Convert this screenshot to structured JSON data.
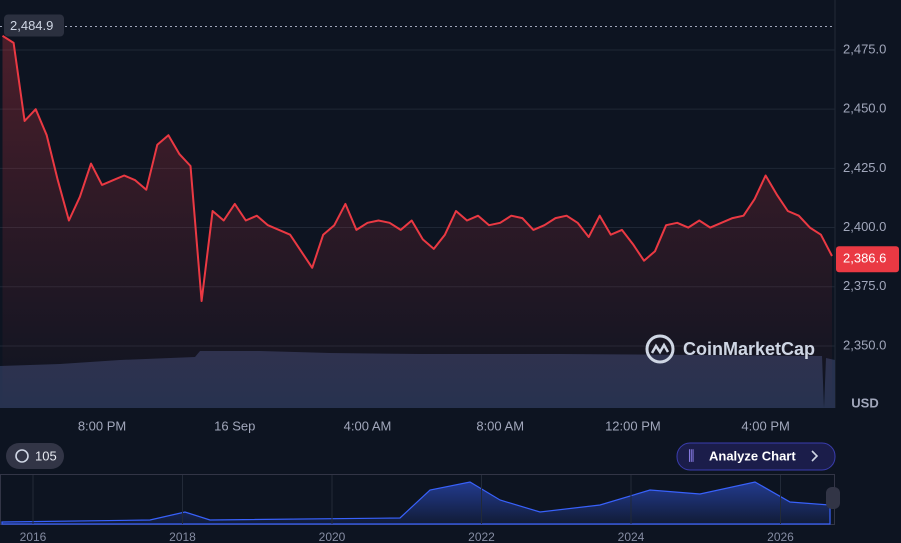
{
  "chart_data": {
    "type": "line",
    "categories": [
      null,
      null,
      null,
      null,
      null,
      null,
      null,
      null,
      null,
      "8:00 PM",
      null,
      null,
      null,
      null,
      null,
      null,
      null,
      null,
      null,
      null,
      null,
      "16 Sep",
      null,
      null,
      null,
      null,
      null,
      null,
      null,
      null,
      null,
      null,
      null,
      "4:00 AM",
      null,
      null,
      null,
      null,
      null,
      null,
      null,
      null,
      null,
      null,
      null,
      "8:00 AM",
      null,
      null,
      null,
      null,
      null,
      null,
      null,
      null,
      null,
      null,
      null,
      "12:00 PM",
      null,
      null,
      null,
      null,
      null,
      null,
      null,
      null,
      null,
      null,
      null,
      "4:00 PM",
      null,
      null,
      null,
      null,
      null,
      null
    ],
    "values": [
      2481,
      2478,
      2445,
      2450,
      2439,
      2420,
      2403,
      2413,
      2427,
      2418,
      2420,
      2422,
      2420,
      2416,
      2435,
      2439,
      2431,
      2426,
      2369,
      2407,
      2403,
      2410,
      2403,
      2405,
      2401,
      2399,
      2397,
      2390,
      2383,
      2397,
      2401,
      2410,
      2399,
      2402,
      2403,
      2402,
      2399,
      2403,
      2395,
      2391,
      2397,
      2407,
      2403,
      2405,
      2401,
      2402,
      2405,
      2404,
      2399,
      2401,
      2404,
      2405,
      2402,
      2396,
      2405,
      2397,
      2399,
      2393,
      2386,
      2390,
      2401,
      2402,
      2400,
      2403,
      2400,
      2402,
      2404,
      2405,
      2412,
      2422,
      2414,
      2407,
      2405,
      2400,
      2397,
      2388
    ],
    "color": "#ea3943",
    "ylim": [
      2323.8,
      2496.1
    ],
    "yticks": [
      {
        "value": 2350,
        "label": "2,350.0"
      },
      {
        "value": 2375,
        "label": "2,375.0"
      },
      {
        "value": 2400,
        "label": "2,400.0"
      },
      {
        "value": 2425,
        "label": "2,425.0"
      },
      {
        "value": 2450,
        "label": "2,450.0"
      },
      {
        "value": 2475,
        "label": "2,475.0"
      }
    ],
    "y_label": "USD",
    "grid": true,
    "high": {
      "value": 2484.9,
      "label": "2,484.9"
    },
    "last": {
      "value": 2386.6,
      "label": "2,386.6"
    }
  },
  "ui": {
    "watermark": "CoinMarketCap",
    "history_count": "105",
    "analyze_button": "Analyze Chart",
    "navigator_labels": [
      "2016",
      "2018",
      "2020",
      "2022",
      "2024",
      "2026"
    ]
  }
}
